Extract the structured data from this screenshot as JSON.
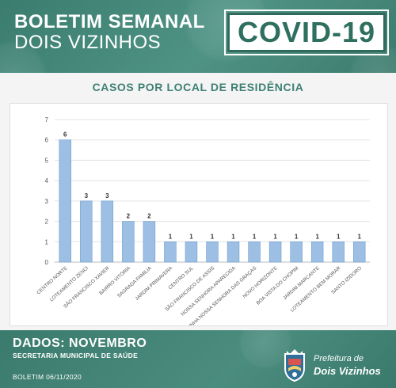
{
  "header": {
    "title_line1": "BOLETIM SEMANAL",
    "title_line2": "DOIS VIZINHOS",
    "badge": "COVID-19"
  },
  "chart_data": {
    "type": "bar",
    "title": "CASOS POR LOCAL DE RESIDÊNCIA",
    "categories": [
      "CENTRO NORTE",
      "LOTEAMENTO ZENCI",
      "SÃO FRANCISCO XAVIER",
      "BAIRRO VITÓRIA",
      "SAGRADA FAMILIA",
      "JARDIM PRIMAVERA",
      "CENTRO SUL",
      "SÃO FRANCISCO DE ASSIS",
      "NOSSA SENHORA APARECIDA",
      "LINHA NOSSA SENHORA DAS GRAÇAS",
      "NOVO HORIZONTE",
      "BOA VISTA DO CHOPIM",
      "JARDIM MARCANTE",
      "LOTEAMENTO BEM MORAR",
      "SANTO IZIDORO"
    ],
    "values": [
      6,
      3,
      3,
      2,
      2,
      1,
      1,
      1,
      1,
      1,
      1,
      1,
      1,
      1,
      1
    ],
    "ylim": [
      0,
      7
    ],
    "yticks": [
      0,
      1,
      2,
      3,
      4,
      5,
      6,
      7
    ],
    "grid": true,
    "bar_color": "#9dbfe3",
    "bar_edge_color": "#6f9fd0"
  },
  "footer": {
    "dados": "DADOS: NOVEMBRO",
    "secretaria": "SECRETARIA MUNICIPAL DE SAÚDE",
    "boletim": "BOLETIM 06/11/2020",
    "prefeitura_line1": "Prefeitura de",
    "prefeitura_line2": "Dois Vizinhos"
  },
  "colors": {
    "brand_green": "#3f7f71",
    "title_green": "#3f8072"
  }
}
